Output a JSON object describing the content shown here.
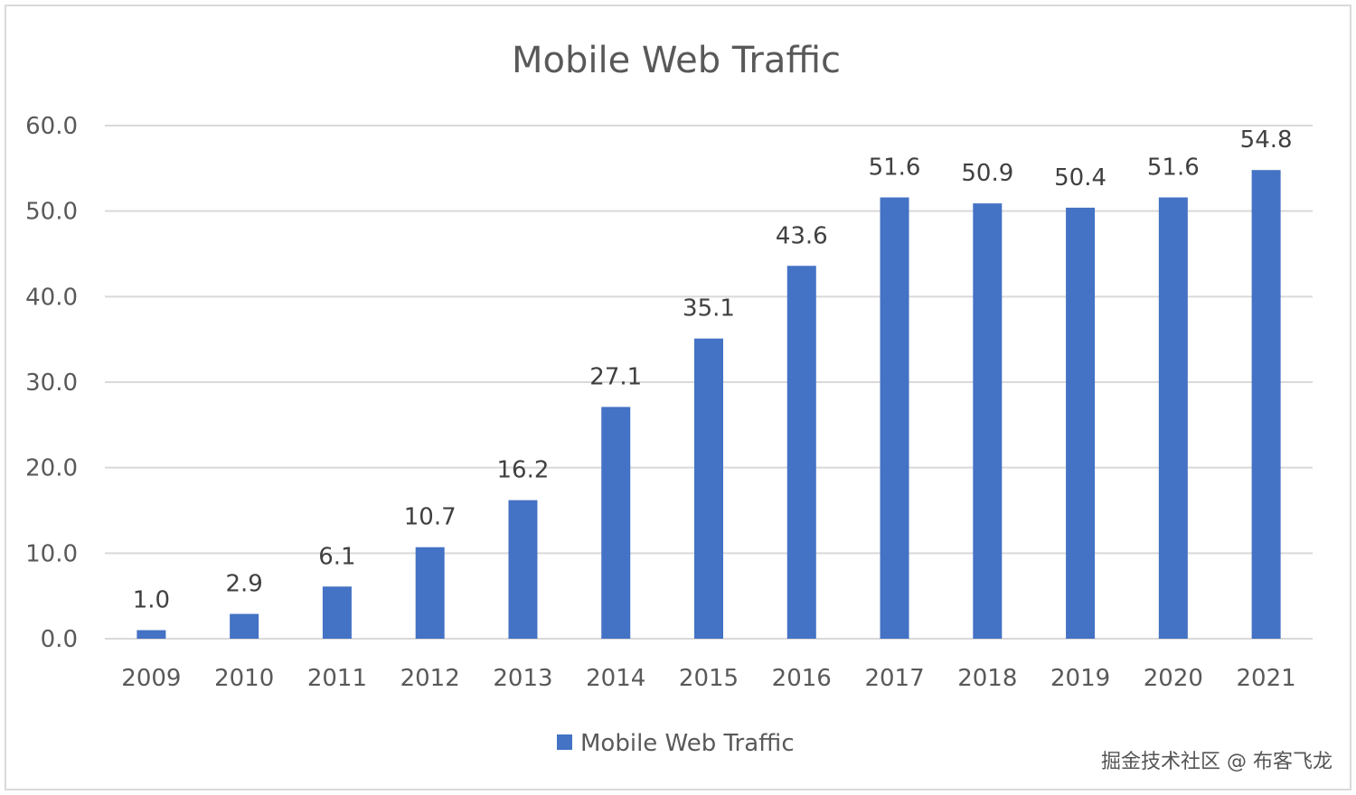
{
  "chart_data": {
    "type": "bar",
    "title": "Mobile Web Traffic",
    "xlabel": "",
    "ylabel": "",
    "categories": [
      "2009",
      "2010",
      "2011",
      "2012",
      "2013",
      "2014",
      "2015",
      "2016",
      "2017",
      "2018",
      "2019",
      "2020",
      "2021"
    ],
    "series": [
      {
        "name": "Mobile Web Traffic",
        "values": [
          1.0,
          2.9,
          6.1,
          10.7,
          16.2,
          27.1,
          35.1,
          43.6,
          51.6,
          50.9,
          50.4,
          51.6,
          54.8
        ],
        "labels": [
          "1.0",
          "2.9",
          "6.1",
          "10.7",
          "16.2",
          "27.1",
          "35.1",
          "43.6",
          "51.6",
          "50.9",
          "50.4",
          "51.6",
          "54.8"
        ],
        "color": "#4472C4"
      }
    ],
    "ylim": [
      0,
      60
    ],
    "yticks": [
      0,
      10,
      20,
      30,
      40,
      50,
      60
    ],
    "ytick_labels": [
      "0.0",
      "10.0",
      "20.0",
      "30.0",
      "40.0",
      "50.0",
      "60.0"
    ],
    "grid": true,
    "gridline_color": "#D9D9D9",
    "legend_position": "bottom"
  },
  "watermark": "掘金技术社区 @ 布客飞龙",
  "colors": {
    "frame": "#D9D9D9",
    "text": "#595959"
  }
}
